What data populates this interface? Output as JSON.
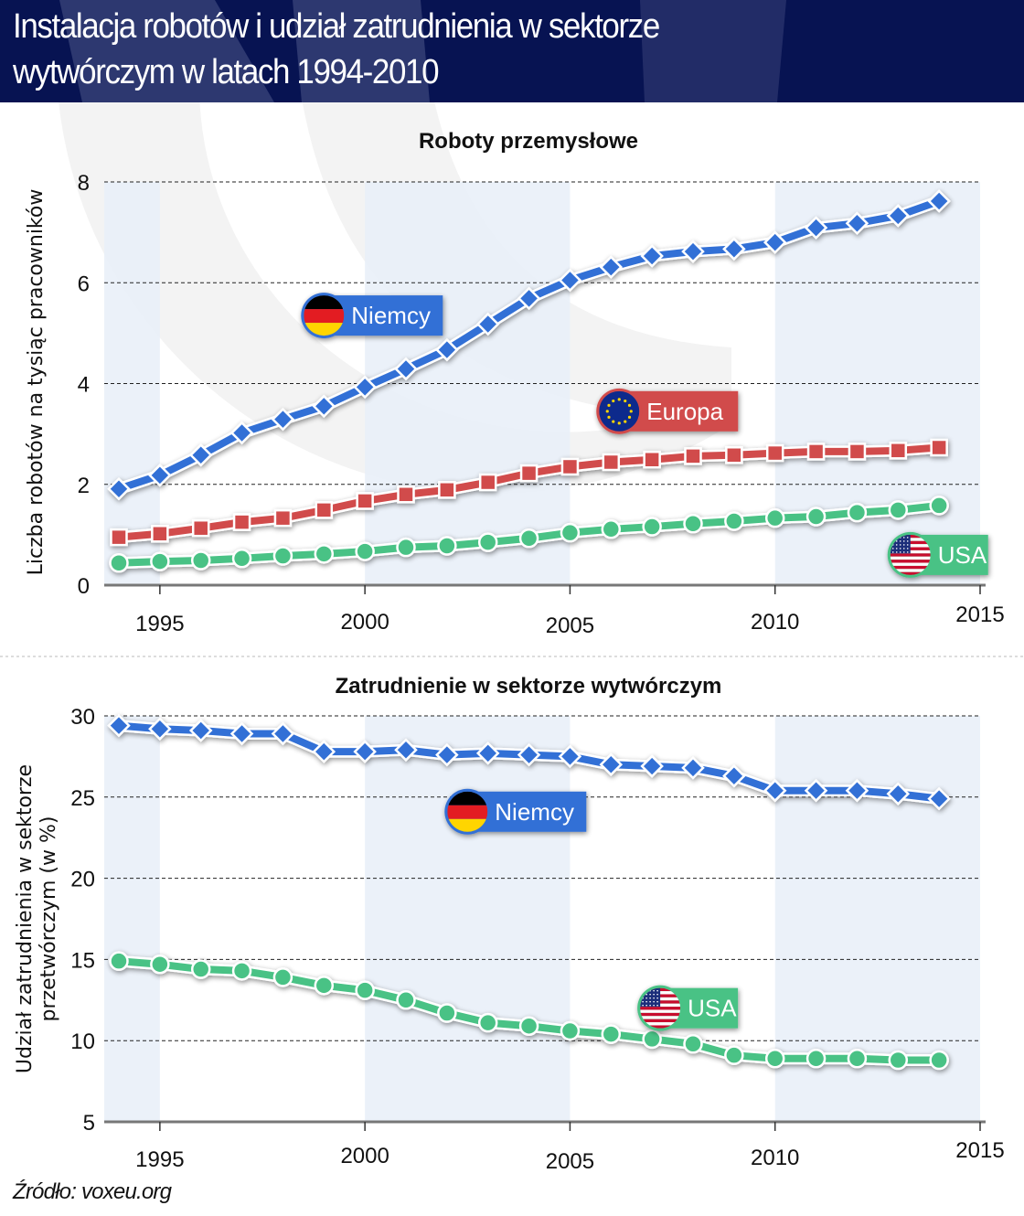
{
  "header": {
    "title_line1": "Instalacja robotów i udział zatrudnienia w sektorze",
    "title_line2": "wytwórczym w latach 1994-2010"
  },
  "source": "Źródło: voxeu.org",
  "colors": {
    "header_bg": "#071352",
    "germany": "#3370d6",
    "europe": "#d14b4b",
    "usa": "#48c285",
    "band": "#e8eef8"
  },
  "chart_data": [
    {
      "type": "line",
      "title": "Roboty przemysłowe",
      "xlabel": "",
      "ylabel": "Liczba robotów na tysiąc pracowników",
      "xlim": [
        1994,
        2015
      ],
      "ylim": [
        0,
        8
      ],
      "x_ticks": [
        1995,
        2000,
        2005,
        2010,
        2015
      ],
      "y_ticks": [
        0,
        2,
        4,
        6,
        8
      ],
      "grid": "horizontal-dashed",
      "shaded_bands": [
        [
          1994,
          1995
        ],
        [
          2000,
          2005
        ],
        [
          2010,
          2015
        ]
      ],
      "x": [
        1994,
        1995,
        1996,
        1997,
        1998,
        1999,
        2000,
        2001,
        2002,
        2003,
        2004,
        2005,
        2006,
        2007,
        2008,
        2009,
        2010,
        2011,
        2012,
        2013,
        2014
      ],
      "series": [
        {
          "name": "Niemcy",
          "marker": "diamond",
          "color": "#3370d6",
          "label_flag": "germany-flag",
          "label_at": [
            1999.0,
            5.35
          ],
          "values": [
            1.91,
            2.18,
            2.58,
            3.02,
            3.29,
            3.55,
            3.93,
            4.29,
            4.67,
            5.18,
            5.69,
            6.05,
            6.31,
            6.53,
            6.62,
            6.67,
            6.8,
            7.09,
            7.18,
            7.33,
            7.62
          ]
        },
        {
          "name": "Europa",
          "marker": "square",
          "color": "#d14b4b",
          "label_flag": "eu-flag",
          "label_at": [
            2006.2,
            3.45
          ],
          "values": [
            0.95,
            1.02,
            1.13,
            1.25,
            1.33,
            1.49,
            1.67,
            1.8,
            1.89,
            2.04,
            2.22,
            2.35,
            2.44,
            2.49,
            2.56,
            2.58,
            2.62,
            2.65,
            2.65,
            2.67,
            2.73
          ]
        },
        {
          "name": "USA",
          "marker": "circle",
          "color": "#48c285",
          "label_flag": "usa-flag",
          "label_at": [
            2013.3,
            0.6
          ],
          "values": [
            0.44,
            0.47,
            0.49,
            0.53,
            0.58,
            0.62,
            0.67,
            0.75,
            0.78,
            0.85,
            0.93,
            1.04,
            1.11,
            1.16,
            1.22,
            1.27,
            1.33,
            1.36,
            1.44,
            1.49,
            1.58
          ]
        }
      ]
    },
    {
      "type": "line",
      "title": "Zatrudnienie w sektorze wytwórczym",
      "xlabel": "",
      "ylabel_line1": "Udział zatrudnienia w sektorze",
      "ylabel_line2": "przetwórczym (w %)",
      "xlim": [
        1994,
        2015
      ],
      "ylim": [
        5,
        30
      ],
      "x_ticks": [
        1995,
        2000,
        2005,
        2010,
        2015
      ],
      "y_ticks": [
        5,
        10,
        15,
        20,
        25,
        30
      ],
      "grid": "horizontal-dashed",
      "shaded_bands": [
        [
          1994,
          1995
        ],
        [
          2000,
          2005
        ],
        [
          2010,
          2015
        ]
      ],
      "x": [
        1994,
        1995,
        1996,
        1997,
        1998,
        1999,
        2000,
        2001,
        2002,
        2003,
        2004,
        2005,
        2006,
        2007,
        2008,
        2009,
        2010,
        2011,
        2012,
        2013,
        2014
      ],
      "series": [
        {
          "name": "Niemcy",
          "marker": "diamond",
          "color": "#3370d6",
          "label_flag": "germany-flag",
          "label_at": [
            2002.5,
            24.1
          ],
          "values": [
            29.4,
            29.2,
            29.1,
            28.9,
            28.9,
            27.8,
            27.8,
            27.9,
            27.6,
            27.7,
            27.6,
            27.5,
            27.0,
            26.9,
            26.8,
            26.3,
            25.4,
            25.4,
            25.4,
            25.2,
            24.9
          ]
        },
        {
          "name": "USA",
          "marker": "circle",
          "color": "#48c285",
          "label_flag": "usa-flag",
          "label_at": [
            2007.2,
            12.0
          ],
          "values": [
            14.9,
            14.7,
            14.4,
            14.3,
            13.9,
            13.4,
            13.1,
            12.5,
            11.7,
            11.1,
            10.9,
            10.6,
            10.4,
            10.1,
            9.8,
            9.1,
            8.9,
            8.9,
            8.9,
            8.8,
            8.8
          ]
        }
      ]
    }
  ]
}
